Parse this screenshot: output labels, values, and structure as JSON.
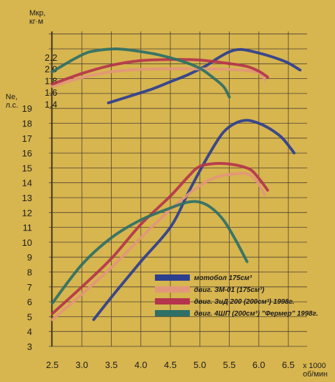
{
  "chart_data": {
    "type": "line",
    "axes": {
      "x": {
        "label_1": "x 1000",
        "label_2": "об/мин",
        "ticks": [
          2.5,
          3.0,
          3.5,
          4.0,
          4.5,
          5.0,
          5.5,
          6.0,
          6.5
        ],
        "tick_labels": [
          "2.5",
          "3.0",
          "3.5",
          "4.0",
          "4.5",
          "5.0",
          "5.5",
          "6.0",
          "6.5"
        ],
        "range": [
          2.5,
          6.7
        ]
      },
      "y_power": {
        "label_1": "Ne,",
        "label_2": "л.с.",
        "ticks": [
          3,
          4,
          5,
          6,
          7,
          8,
          9,
          10,
          11,
          12,
          13,
          14,
          15,
          16,
          17,
          18,
          19
        ],
        "range": [
          3,
          19.2
        ]
      },
      "y_torque": {
        "label_1": "Мкр,",
        "label_2": "кг·м",
        "ticks": [
          1.4,
          1.6,
          1.8,
          2.0,
          2.2
        ],
        "range": [
          1.4,
          2.4
        ]
      }
    },
    "grid": true,
    "legend": {
      "position": "bottom-right",
      "entries": [
        {
          "label": "мотобол 175см³",
          "color": "#2c3f8f"
        },
        {
          "label": "двиг. ЗМ-01 (175см³)",
          "color": "#e3977a"
        },
        {
          "label": "двиг. ЗиД 200 (200см³) 1998г.",
          "color": "#b5354c"
        },
        {
          "label": "двиг. 4ШП (200см³) \"Фермер\" 1998г.",
          "color": "#2e7066"
        }
      ]
    },
    "series": [
      {
        "color": "#2c3f8f",
        "power": {
          "x": [
            3.2,
            3.5,
            4.0,
            4.5,
            4.8,
            5.0,
            5.2,
            5.4,
            5.6,
            5.8,
            6.0,
            6.2,
            6.4,
            6.6
          ],
          "y": [
            4.8,
            6.3,
            8.7,
            11.0,
            13.3,
            14.8,
            16.2,
            17.4,
            18.0,
            18.2,
            18.0,
            17.6,
            17.0,
            16.0
          ]
        },
        "torque": {
          "x": [
            3.45,
            3.8,
            4.2,
            4.5,
            4.8,
            5.1,
            5.3,
            5.5,
            5.7,
            6.0,
            6.3,
            6.5,
            6.7
          ],
          "y": [
            1.42,
            1.53,
            1.66,
            1.78,
            1.9,
            2.05,
            2.18,
            2.29,
            2.33,
            2.27,
            2.18,
            2.1,
            1.98
          ]
        }
      },
      {
        "color": "#e3977a",
        "power": {
          "x": [
            2.5,
            3.0,
            3.5,
            4.0,
            4.5,
            5.0,
            5.3,
            5.6,
            5.8,
            5.95,
            6.1
          ],
          "y": [
            4.8,
            6.5,
            8.3,
            10.3,
            12.2,
            13.8,
            14.4,
            14.6,
            14.6,
            14.2,
            13.2
          ]
        },
        "torque": {
          "x": [
            2.5,
            3.0,
            3.5,
            4.0,
            4.5,
            5.0,
            5.5,
            5.8,
            6.0,
            6.1
          ],
          "y": [
            1.7,
            1.85,
            1.95,
            1.99,
            2.0,
            2.0,
            1.99,
            1.97,
            1.93,
            1.82
          ]
        }
      },
      {
        "color": "#b5354c",
        "power": {
          "x": [
            2.5,
            3.0,
            3.5,
            4.0,
            4.5,
            4.8,
            5.0,
            5.3,
            5.6,
            5.85,
            6.0,
            6.15
          ],
          "y": [
            5.2,
            7.0,
            8.9,
            11.2,
            13.1,
            14.4,
            15.1,
            15.3,
            15.2,
            14.9,
            14.3,
            13.5
          ]
        },
        "torque": {
          "x": [
            2.5,
            3.0,
            3.5,
            4.0,
            4.5,
            5.0,
            5.5,
            5.8,
            6.0,
            6.15
          ],
          "y": [
            1.74,
            1.92,
            2.06,
            2.14,
            2.16,
            2.15,
            2.09,
            2.04,
            1.96,
            1.86
          ]
        }
      },
      {
        "color": "#2e7066",
        "power": {
          "x": [
            2.5,
            3.0,
            3.5,
            4.0,
            4.5,
            4.8,
            5.0,
            5.2,
            5.4,
            5.6,
            5.8
          ],
          "y": [
            5.9,
            8.5,
            10.3,
            11.5,
            12.3,
            12.7,
            12.7,
            12.3,
            11.5,
            10.2,
            8.7
          ]
        },
        "torque": {
          "x": [
            2.5,
            2.8,
            3.1,
            3.4,
            3.6,
            3.9,
            4.3,
            4.7,
            5.0,
            5.2,
            5.4,
            5.5
          ],
          "y": [
            1.95,
            2.13,
            2.28,
            2.33,
            2.34,
            2.31,
            2.24,
            2.13,
            2.01,
            1.87,
            1.7,
            1.52
          ]
        }
      }
    ]
  }
}
